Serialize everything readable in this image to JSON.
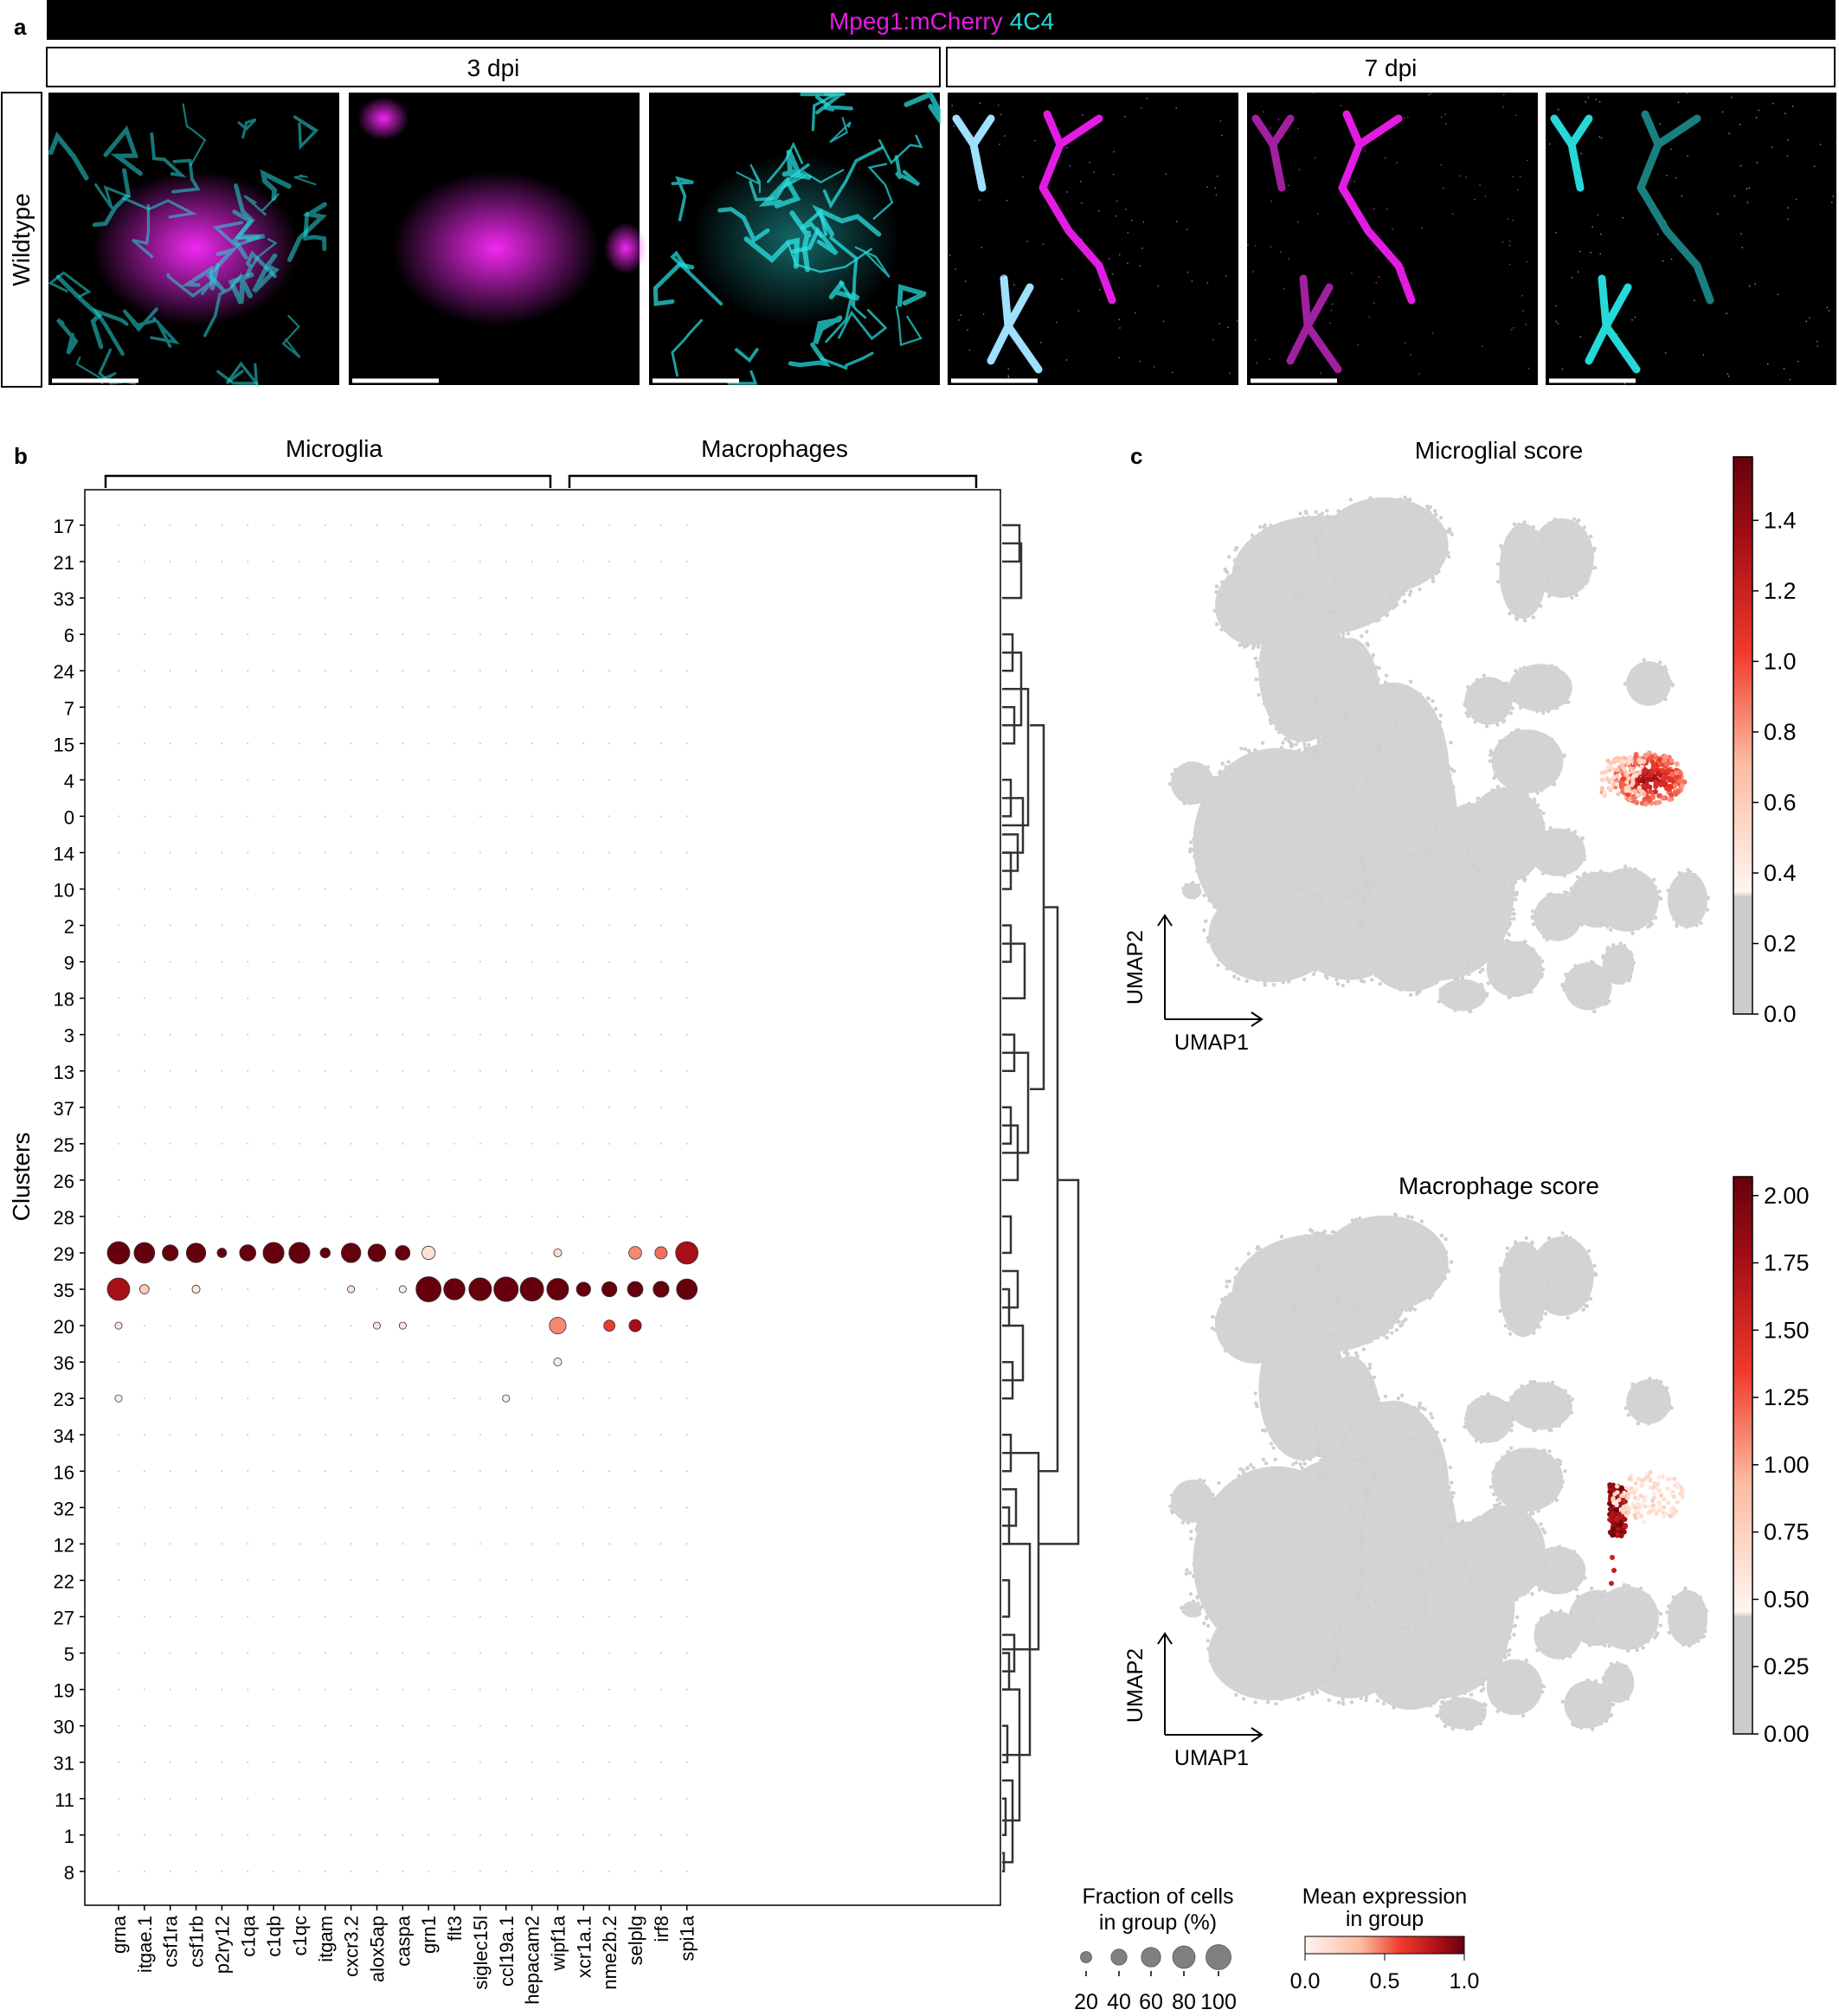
{
  "panel_a": {
    "letter": "a",
    "channel_1": "Mpeg1:mCherry",
    "channel_2": "4C4",
    "timepoints": [
      "3 dpi",
      "7 dpi"
    ],
    "row_label": "Wildtype",
    "colors": {
      "mcherry": "#e21ce2",
      "c4c4": "#27d8d8",
      "banner": "#000000"
    }
  },
  "chart_data": [
    {
      "id": "dotplot",
      "type": "scatter",
      "letter": "b",
      "group_labels": [
        "Microglia",
        "Macrophages"
      ],
      "ylabel": "Clusters",
      "genes": [
        "grna",
        "itgae.1",
        "csf1ra",
        "csf1rb",
        "p2ry12",
        "c1qa",
        "c1qb",
        "c1qc",
        "itgam",
        "cxcr3.2",
        "alox5ap",
        "caspa",
        "grn1",
        "flt3",
        "siglec15l",
        "ccl19a.1",
        "hepacam2",
        "wipf1a",
        "xcr1a.1",
        "nme2b.2",
        "selplg",
        "irf8",
        "spi1a"
      ],
      "clusters": [
        "17",
        "21",
        "33",
        "6",
        "24",
        "7",
        "15",
        "4",
        "0",
        "14",
        "10",
        "2",
        "9",
        "18",
        "3",
        "13",
        "37",
        "25",
        "26",
        "28",
        "29",
        "35",
        "20",
        "36",
        "23",
        "34",
        "16",
        "32",
        "12",
        "22",
        "27",
        "5",
        "19",
        "30",
        "31",
        "11",
        "1",
        "8"
      ],
      "points": [
        {
          "cluster": "29",
          "gene": "grna",
          "fraction": 80,
          "expression": 1.0
        },
        {
          "cluster": "29",
          "gene": "itgae.1",
          "fraction": 68,
          "expression": 1.0
        },
        {
          "cluster": "29",
          "gene": "csf1ra",
          "fraction": 40,
          "expression": 1.0
        },
        {
          "cluster": "29",
          "gene": "csf1rb",
          "fraction": 60,
          "expression": 1.0
        },
        {
          "cluster": "29",
          "gene": "p2ry12",
          "fraction": 14,
          "expression": 1.0
        },
        {
          "cluster": "29",
          "gene": "c1qa",
          "fraction": 42,
          "expression": 1.0
        },
        {
          "cluster": "29",
          "gene": "c1qb",
          "fraction": 70,
          "expression": 1.0
        },
        {
          "cluster": "29",
          "gene": "c1qc",
          "fraction": 70,
          "expression": 1.0
        },
        {
          "cluster": "29",
          "gene": "itgam",
          "fraction": 16,
          "expression": 1.0
        },
        {
          "cluster": "29",
          "gene": "cxcr3.2",
          "fraction": 60,
          "expression": 1.0
        },
        {
          "cluster": "29",
          "gene": "alox5ap",
          "fraction": 50,
          "expression": 1.0
        },
        {
          "cluster": "29",
          "gene": "caspa",
          "fraction": 34,
          "expression": 1.0
        },
        {
          "cluster": "29",
          "gene": "grn1",
          "fraction": 28,
          "expression": 0.12
        },
        {
          "cluster": "29",
          "gene": "wipf1a",
          "fraction": 10,
          "expression": 0.15
        },
        {
          "cluster": "29",
          "gene": "selplg",
          "fraction": 26,
          "expression": 0.45
        },
        {
          "cluster": "29",
          "gene": "irf8",
          "fraction": 24,
          "expression": 0.5
        },
        {
          "cluster": "29",
          "gene": "spi1a",
          "fraction": 80,
          "expression": 0.85
        },
        {
          "cluster": "35",
          "gene": "grna",
          "fraction": 80,
          "expression": 0.85
        },
        {
          "cluster": "35",
          "gene": "itgae.1",
          "fraction": 14,
          "expression": 0.25
        },
        {
          "cluster": "35",
          "gene": "csf1rb",
          "fraction": 10,
          "expression": 0.1
        },
        {
          "cluster": "35",
          "gene": "cxcr3.2",
          "fraction": 8,
          "expression": 0.1
        },
        {
          "cluster": "35",
          "gene": "caspa",
          "fraction": 8,
          "expression": 0.05
        },
        {
          "cluster": "35",
          "gene": "grn1",
          "fraction": 100,
          "expression": 1.0
        },
        {
          "cluster": "35",
          "gene": "flt3",
          "fraction": 72,
          "expression": 1.0
        },
        {
          "cluster": "35",
          "gene": "siglec15l",
          "fraction": 82,
          "expression": 1.0
        },
        {
          "cluster": "35",
          "gene": "ccl19a.1",
          "fraction": 95,
          "expression": 1.0
        },
        {
          "cluster": "35",
          "gene": "hepacam2",
          "fraction": 88,
          "expression": 1.0
        },
        {
          "cluster": "35",
          "gene": "wipf1a",
          "fraction": 75,
          "expression": 1.0
        },
        {
          "cluster": "35",
          "gene": "xcr1a.1",
          "fraction": 32,
          "expression": 1.0
        },
        {
          "cluster": "35",
          "gene": "nme2b.2",
          "fraction": 36,
          "expression": 1.0
        },
        {
          "cluster": "35",
          "gene": "selplg",
          "fraction": 38,
          "expression": 1.0
        },
        {
          "cluster": "35",
          "gene": "irf8",
          "fraction": 40,
          "expression": 1.0
        },
        {
          "cluster": "35",
          "gene": "spi1a",
          "fraction": 68,
          "expression": 1.0
        },
        {
          "cluster": "20",
          "gene": "grna",
          "fraction": 8,
          "expression": 0.1
        },
        {
          "cluster": "20",
          "gene": "alox5ap",
          "fraction": 8,
          "expression": 0.1
        },
        {
          "cluster": "20",
          "gene": "caspa",
          "fraction": 8,
          "expression": 0.1
        },
        {
          "cluster": "20",
          "gene": "wipf1a",
          "fraction": 44,
          "expression": 0.45
        },
        {
          "cluster": "20",
          "gene": "nme2b.2",
          "fraction": 20,
          "expression": 0.6
        },
        {
          "cluster": "20",
          "gene": "selplg",
          "fraction": 24,
          "expression": 0.85
        },
        {
          "cluster": "36",
          "gene": "wipf1a",
          "fraction": 10,
          "expression": 0.05
        },
        {
          "cluster": "23",
          "gene": "grna",
          "fraction": 8,
          "expression": 0.05
        },
        {
          "cluster": "23",
          "gene": "ccl19a.1",
          "fraction": 8,
          "expression": 0.05
        }
      ],
      "size_legend": {
        "title_line1": "Fraction of cells",
        "title_line2": "in group (%)",
        "values": [
          "20",
          "40",
          "60",
          "80",
          "100"
        ]
      },
      "color_legend": {
        "title_line1": "Mean expression",
        "title_line2": "in group",
        "ticks": [
          "0.0",
          "0.5",
          "1.0"
        ]
      },
      "colors": {
        "low": "#fff5f0",
        "mid": "#ef3b2c",
        "high": "#67000d",
        "dendrogram": "#333333"
      }
    },
    {
      "id": "umap_microglia",
      "type": "scatter",
      "letter": "c",
      "title": "Microglial score",
      "xlabel": "UMAP1",
      "ylabel": "UMAP2",
      "colorbar_ticks": [
        "1.4",
        "1.2",
        "1.0",
        "0.8",
        "0.6",
        "0.4",
        "0.2",
        "0.0"
      ],
      "colorbar_range": [
        0.0,
        1.58
      ]
    },
    {
      "id": "umap_macrophage",
      "type": "scatter",
      "title": "Macrophage score",
      "xlabel": "UMAP1",
      "ylabel": "UMAP2",
      "colorbar_ticks": [
        "2.00",
        "1.75",
        "1.50",
        "1.25",
        "1.00",
        "0.75",
        "0.50",
        "0.25",
        "0.00"
      ],
      "colorbar_range": [
        0.0,
        2.07
      ]
    }
  ]
}
